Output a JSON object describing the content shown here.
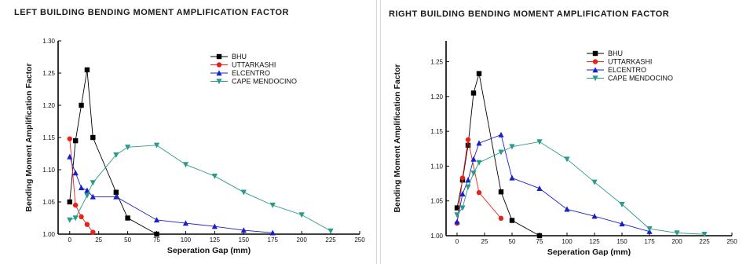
{
  "chart_data": [
    {
      "type": "line",
      "title": "LEFT BUILDING BENDING MOMENT AMPLIFICATION FACTOR",
      "xlabel": "Seperation Gap (mm)",
      "ylabel": "Bending Moment Amplification Factor",
      "xlim": [
        -10,
        250
      ],
      "ylim": [
        1.0,
        1.3
      ],
      "xticks": [
        0,
        25,
        50,
        75,
        100,
        125,
        150,
        175,
        200,
        225,
        250
      ],
      "yticks": [
        1.0,
        1.05,
        1.1,
        1.15,
        1.2,
        1.25,
        1.3
      ],
      "ytick_labels": [
        "1.00",
        "1.05",
        "1.10",
        "1.15",
        "1.20",
        "1.25",
        "1.30"
      ],
      "legend": "top-center",
      "series": [
        {
          "name": "BHU",
          "color": "#000000",
          "marker": "square",
          "x": [
            0,
            5,
            10,
            15,
            20,
            40,
            50,
            75
          ],
          "y": [
            1.05,
            1.145,
            1.2,
            1.255,
            1.15,
            1.065,
            1.025,
            1.0
          ]
        },
        {
          "name": "UTTARKASHI",
          "color": "#e8231c",
          "marker": "circle",
          "x": [
            0,
            5,
            10,
            15,
            20
          ],
          "y": [
            1.148,
            1.045,
            1.027,
            1.015,
            1.003
          ]
        },
        {
          "name": "ELCENTRO",
          "color": "#1a20c8",
          "marker": "triangle-up",
          "x": [
            0,
            5,
            10,
            15,
            20,
            40,
            75,
            100,
            125,
            150,
            175
          ],
          "y": [
            1.12,
            1.095,
            1.072,
            1.068,
            1.058,
            1.058,
            1.022,
            1.017,
            1.012,
            1.006,
            1.002
          ]
        },
        {
          "name": "CAPE MENDOCINO",
          "color": "#2a9a8a",
          "marker": "triangle-down",
          "x": [
            0,
            5,
            15,
            20,
            40,
            50,
            75,
            100,
            125,
            150,
            175,
            200,
            225
          ],
          "y": [
            1.022,
            1.025,
            1.06,
            1.08,
            1.123,
            1.135,
            1.138,
            1.108,
            1.09,
            1.065,
            1.045,
            1.03,
            1.005
          ]
        }
      ]
    },
    {
      "type": "line",
      "title": "RIGHT BUILDING BENDING MOMENT AMPLIFICATION FACTOR",
      "xlabel": "Seperation Gap (mm)",
      "ylabel": "Bending Moment Amplification Factor",
      "xlim": [
        -10,
        250
      ],
      "ylim": [
        1.0,
        1.28
      ],
      "xticks": [
        0,
        25,
        50,
        75,
        100,
        125,
        150,
        175,
        200,
        225,
        250
      ],
      "yticks": [
        1.0,
        1.05,
        1.1,
        1.15,
        1.2,
        1.25
      ],
      "ytick_labels": [
        "1.00",
        "1.05",
        "1.10",
        "1.15",
        "1.20",
        "1.25"
      ],
      "legend": "top-center",
      "series": [
        {
          "name": "BHU",
          "color": "#000000",
          "marker": "square",
          "x": [
            0,
            5,
            10,
            15,
            20,
            40,
            50,
            75
          ],
          "y": [
            1.04,
            1.08,
            1.13,
            1.205,
            1.233,
            1.063,
            1.022,
            1.0
          ]
        },
        {
          "name": "UTTARKASHI",
          "color": "#e8231c",
          "marker": "circle",
          "x": [
            0,
            5,
            10,
            20,
            40
          ],
          "y": [
            1.018,
            1.083,
            1.138,
            1.062,
            1.025
          ]
        },
        {
          "name": "ELCENTRO",
          "color": "#1a20c8",
          "marker": "triangle-up",
          "x": [
            0,
            5,
            10,
            15,
            20,
            40,
            50,
            75,
            100,
            125,
            150,
            175
          ],
          "y": [
            1.02,
            1.06,
            1.08,
            1.11,
            1.133,
            1.145,
            1.083,
            1.068,
            1.038,
            1.028,
            1.017,
            1.006
          ]
        },
        {
          "name": "CAPE MENDOCINO",
          "color": "#2a9a8a",
          "marker": "triangle-down",
          "x": [
            0,
            5,
            10,
            15,
            20,
            40,
            50,
            75,
            100,
            125,
            150,
            175,
            200,
            225
          ],
          "y": [
            1.03,
            1.04,
            1.07,
            1.09,
            1.105,
            1.12,
            1.128,
            1.135,
            1.11,
            1.077,
            1.045,
            1.01,
            1.004,
            1.002
          ]
        }
      ]
    }
  ]
}
